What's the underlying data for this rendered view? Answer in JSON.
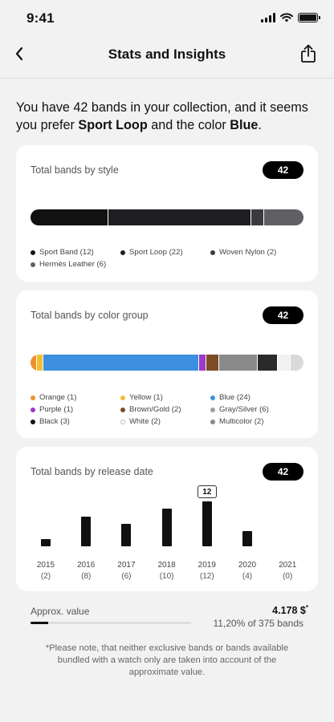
{
  "status": {
    "time": "9:41"
  },
  "nav": {
    "title": "Stats and Insights"
  },
  "intro": {
    "prefix": "You have 42 bands in your collection, and it seems you prefer ",
    "style": "Sport Loop",
    "middle": " and the color ",
    "color": "Blue",
    "suffix": "."
  },
  "style_card": {
    "title": "Total bands by style",
    "count": "42",
    "segments": [
      {
        "label": "Sport Band (12)",
        "value": 12,
        "color": "#111111"
      },
      {
        "label": "Sport Loop (22)",
        "value": 22,
        "color": "#1f1f22"
      },
      {
        "label": "Woven Nylon (2)",
        "value": 2,
        "color": "#3a3a3e"
      },
      {
        "label": "Hermès Leather (6)",
        "value": 6,
        "color": "#5f5f64"
      }
    ]
  },
  "color_card": {
    "title": "Total bands by color group",
    "count": "42",
    "segments": [
      {
        "label": "Orange (1)",
        "value": 1,
        "color": "#f0902b"
      },
      {
        "label": "Yellow (1)",
        "value": 1,
        "color": "#f2bf30"
      },
      {
        "label": "Blue (24)",
        "value": 24,
        "color": "#3d8fe0"
      },
      {
        "label": "Purple (1)",
        "value": 1,
        "color": "#9b39c9"
      },
      {
        "label": "Brown/Gold (2)",
        "value": 2,
        "color": "#7d4d27"
      },
      {
        "label": "Gray/Silver (6)",
        "value": 6,
        "color": "#8a8a8a"
      },
      {
        "label": "Black (3)",
        "value": 3,
        "color": "#2a2a2a"
      },
      {
        "label": "White (2)",
        "value": 2,
        "color": "#f1f1f1"
      },
      {
        "label": "Multicolor (2)",
        "value": 2,
        "color": "#d9d9d9"
      }
    ],
    "legend_colors": [
      "#f0902b",
      "#f2bf30",
      "#3d8fe0",
      "#9b39c9",
      "#7d4d27",
      "#a0a0a0",
      "#111111",
      "#ffffff",
      "#8a8a8a"
    ]
  },
  "release_card": {
    "title": "Total bands by release date",
    "count": "42"
  },
  "chart_data": {
    "type": "bar",
    "categories": [
      "2015",
      "2016",
      "2017",
      "2018",
      "2019",
      "2020",
      "2021"
    ],
    "values": [
      2,
      8,
      6,
      10,
      12,
      4,
      0
    ],
    "value_labels": [
      "(2)",
      "(8)",
      "(6)",
      "(10)",
      "(12)",
      "(4)",
      "(0)"
    ],
    "highlighted_label": "12",
    "highlighted_index": 4,
    "ylim": [
      0,
      12
    ]
  },
  "value": {
    "label": "Approx. value",
    "amount": "4.178 $",
    "amount_mark": "*",
    "subtitle": "11,20% of 375 bands",
    "progress": 0.112
  },
  "footnote": "*Please note, that neither exclusive bands or bands available bundled with a watch only are taken into account of the approximate value."
}
